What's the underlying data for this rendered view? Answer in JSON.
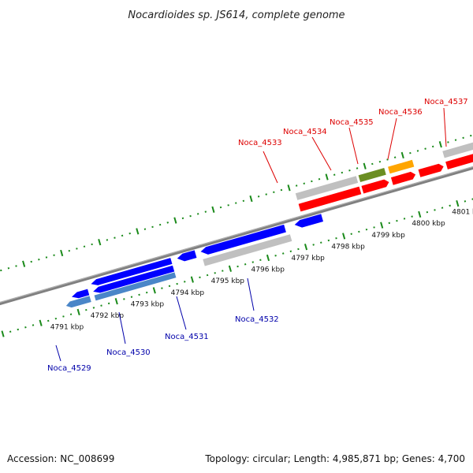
{
  "title": "Nocardioides sp. JS614, complete genome",
  "footer": {
    "accession": "Accession: NC_008699",
    "summary": "Topology: circular; Length: 4,985,871 bp; Genes: 4,700"
  },
  "colors": {
    "forward_label": "#dd0000",
    "reverse_label": "#0000aa",
    "forward_gene": "#ff0000",
    "reverse_gene": "#0000ff",
    "reverse_gene_alt": "#4a86c8",
    "pseudo_gene": "#c0c0c0",
    "olive_gene": "#6b8e23",
    "orange_gene": "#ffa500",
    "backbone": "#808080",
    "tick": "#1a8a1a"
  },
  "scale_labels": [
    "4791 kbp",
    "4792 kbp",
    "4793 kbp",
    "4794 kbp",
    "4795 kbp",
    "4796 kbp",
    "4797 kbp",
    "4798 kbp",
    "4799 kbp",
    "4800 kbp",
    "4801 kbp"
  ],
  "gene_labels": {
    "reverse": [
      "Noca_4529",
      "Noca_4530",
      "Noca_4531",
      "Noca_4532"
    ],
    "forward": [
      "Noca_4533",
      "Noca_4534",
      "Noca_4535",
      "Noca_4536",
      "Noca_4537"
    ]
  }
}
